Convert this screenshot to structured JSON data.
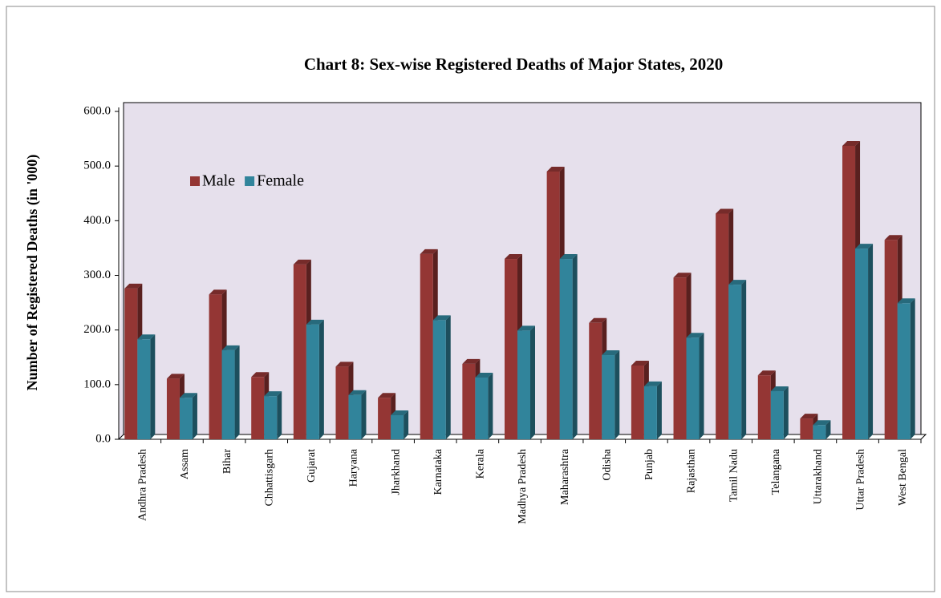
{
  "chart_data": {
    "type": "bar",
    "title": "Chart 8: Sex-wise Registered Deaths of Major States, 2020",
    "y_label": "Number of Registered Deaths (in '000)",
    "categories": [
      "Andhra Pradesh",
      "Assam",
      "Bihar",
      "Chhattisgarh",
      "Gujarat",
      "Haryana",
      "Jharkhand",
      "Karnataka",
      "Kerala",
      "Madhya Pradesh",
      "Maharashtra",
      "Odisha",
      "Punjab",
      "Rajasthan",
      "Tamil Nadu",
      "Telangana",
      "Uttarakhand",
      "Uttar Pradesh",
      "West Bengal"
    ],
    "series": [
      {
        "name": "Male",
        "color": "#943634",
        "values": [
          276,
          111,
          265,
          114,
          320,
          133,
          76,
          339,
          138,
          330,
          490,
          213,
          135,
          296,
          413,
          117,
          38,
          537,
          365
        ]
      },
      {
        "name": "Female",
        "color": "#31849b",
        "values": [
          183,
          76,
          163,
          79,
          210,
          81,
          44,
          218,
          113,
          199,
          330,
          154,
          97,
          186,
          283,
          88,
          26,
          349,
          249
        ]
      }
    ],
    "ylim": [
      0,
      600
    ],
    "yticks": [
      {
        "value": 0,
        "label": "0.0"
      },
      {
        "value": 100,
        "label": "100.0"
      },
      {
        "value": 200,
        "label": "200.0"
      },
      {
        "value": 300,
        "label": "300.0"
      },
      {
        "value": 400,
        "label": "400.0"
      },
      {
        "value": 500,
        "label": "500.0"
      },
      {
        "value": 600,
        "label": "600.0"
      }
    ],
    "legend": "upper left",
    "plot_background": "#e6e0ec"
  }
}
